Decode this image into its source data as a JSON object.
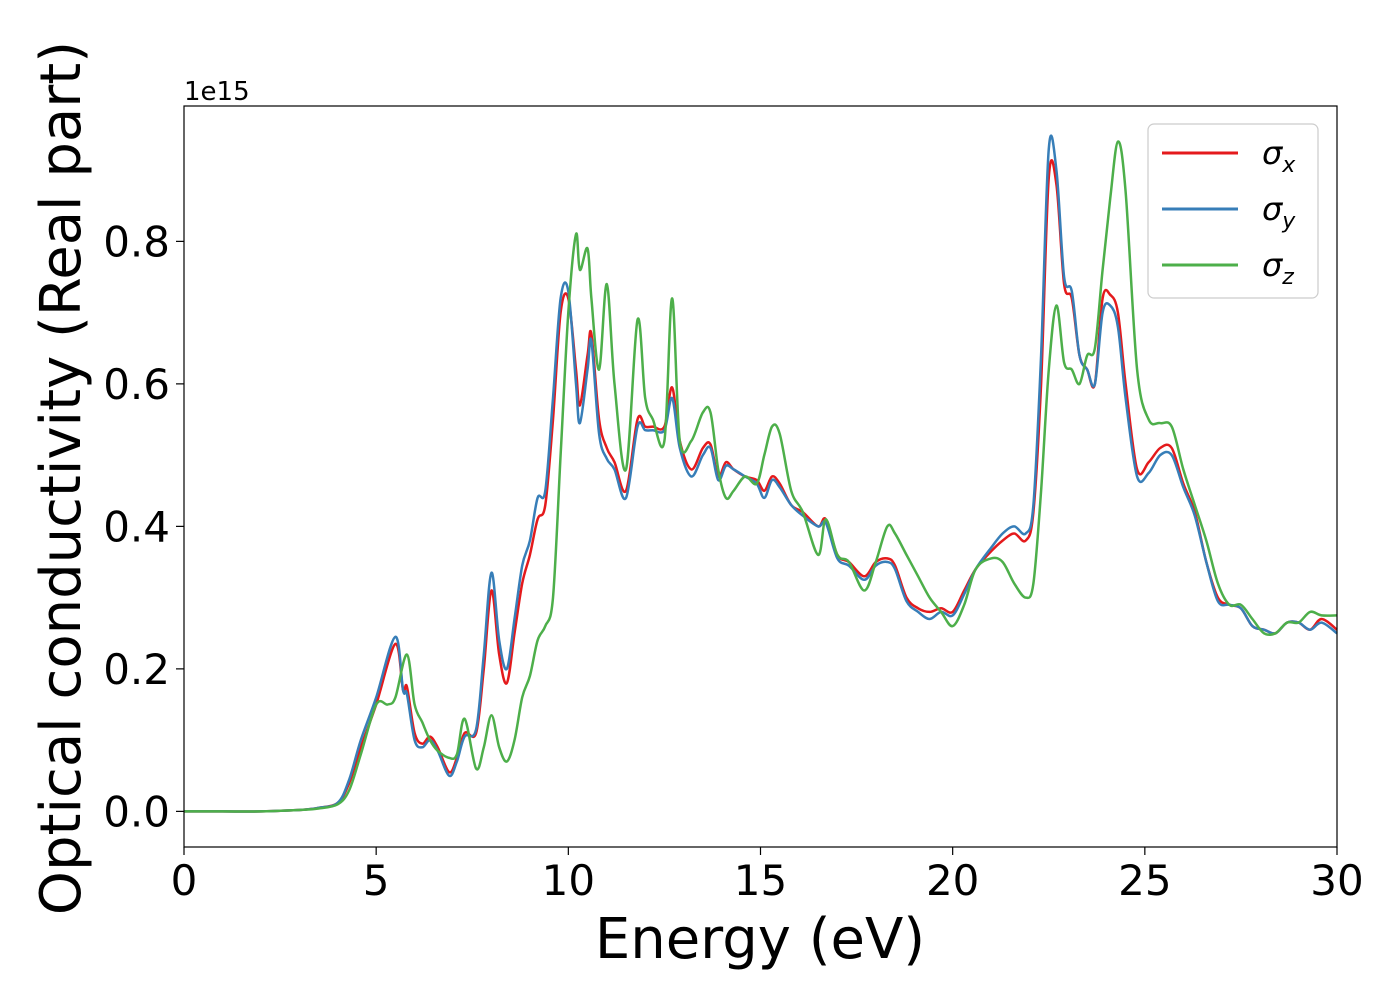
{
  "chart_data": {
    "type": "line",
    "xlabel": "Energy (eV)",
    "ylabel": "Optical conductivity (Real part)",
    "y_offset_label": "1e15",
    "xlim": [
      0,
      30
    ],
    "ylim": [
      -0.05,
      0.99
    ],
    "xticks": [
      0,
      5,
      10,
      15,
      20,
      25,
      30
    ],
    "xtick_labels": [
      "0",
      "5",
      "10",
      "15",
      "20",
      "25",
      "30"
    ],
    "yticks": [
      0.0,
      0.2,
      0.4,
      0.6,
      0.8
    ],
    "ytick_labels": [
      "0.0",
      "0.2",
      "0.4",
      "0.6",
      "0.8"
    ],
    "grid": false,
    "legend_position": "top-right",
    "series": [
      {
        "name": "σx",
        "symbol": "σ",
        "subscript": "x",
        "color": "#e41a1c",
        "x": [
          0,
          1,
          2,
          3,
          3.5,
          4,
          4.3,
          4.6,
          5,
          5.5,
          5.7,
          5.8,
          6,
          6.2,
          6.4,
          6.6,
          6.9,
          7.1,
          7.3,
          7.6,
          7.8,
          8,
          8.2,
          8.4,
          8.6,
          8.8,
          9,
          9.2,
          9.4,
          9.6,
          9.8,
          10,
          10.2,
          10.3,
          10.5,
          10.6,
          10.8,
          11,
          11.2,
          11.5,
          11.8,
          12,
          12.2,
          12.5,
          12.7,
          12.9,
          13.2,
          13.5,
          13.7,
          13.9,
          14.1,
          14.3,
          14.6,
          14.9,
          15.1,
          15.3,
          15.5,
          15.8,
          16.1,
          16.5,
          16.7,
          17,
          17.3,
          17.7,
          18,
          18.3,
          18.5,
          18.8,
          19.1,
          19.4,
          19.7,
          20,
          20.3,
          20.6,
          21,
          21.3,
          21.6,
          21.9,
          22.1,
          22.3,
          22.5,
          22.7,
          22.9,
          23.1,
          23.3,
          23.5,
          23.7,
          23.9,
          24.1,
          24.3,
          24.5,
          24.8,
          25.1,
          25.4,
          25.7,
          26,
          26.3,
          26.6,
          26.9,
          27.2,
          27.5,
          27.8,
          28.1,
          28.4,
          28.7,
          29,
          29.3,
          29.6,
          30
        ],
        "y": [
          0,
          0,
          0,
          0.002,
          0.005,
          0.012,
          0.04,
          0.09,
          0.15,
          0.235,
          0.17,
          0.175,
          0.11,
          0.095,
          0.105,
          0.09,
          0.055,
          0.075,
          0.11,
          0.11,
          0.2,
          0.31,
          0.22,
          0.18,
          0.25,
          0.32,
          0.36,
          0.41,
          0.43,
          0.55,
          0.7,
          0.72,
          0.62,
          0.57,
          0.64,
          0.67,
          0.55,
          0.51,
          0.49,
          0.45,
          0.55,
          0.54,
          0.54,
          0.54,
          0.595,
          0.52,
          0.48,
          0.51,
          0.515,
          0.47,
          0.49,
          0.48,
          0.47,
          0.465,
          0.45,
          0.47,
          0.46,
          0.43,
          0.42,
          0.4,
          0.41,
          0.36,
          0.35,
          0.33,
          0.35,
          0.355,
          0.345,
          0.3,
          0.285,
          0.28,
          0.285,
          0.28,
          0.31,
          0.34,
          0.365,
          0.38,
          0.39,
          0.38,
          0.42,
          0.6,
          0.89,
          0.88,
          0.74,
          0.72,
          0.64,
          0.62,
          0.6,
          0.72,
          0.725,
          0.7,
          0.6,
          0.48,
          0.49,
          0.51,
          0.51,
          0.46,
          0.42,
          0.35,
          0.3,
          0.29,
          0.285,
          0.26,
          0.255,
          0.25,
          0.265,
          0.265,
          0.255,
          0.27,
          0.255
        ]
      },
      {
        "name": "σy",
        "symbol": "σ",
        "subscript": "y",
        "color": "#377eb8",
        "x": [
          0,
          1,
          2,
          3,
          3.5,
          4,
          4.3,
          4.6,
          5,
          5.5,
          5.7,
          5.8,
          6,
          6.2,
          6.4,
          6.6,
          6.9,
          7.1,
          7.3,
          7.6,
          7.8,
          8,
          8.2,
          8.4,
          8.6,
          8.8,
          9,
          9.2,
          9.4,
          9.6,
          9.8,
          10,
          10.2,
          10.3,
          10.5,
          10.6,
          10.8,
          11,
          11.2,
          11.5,
          11.8,
          12,
          12.2,
          12.5,
          12.7,
          12.9,
          13.2,
          13.5,
          13.7,
          13.9,
          14.1,
          14.3,
          14.6,
          14.9,
          15.1,
          15.3,
          15.5,
          15.8,
          16.1,
          16.5,
          16.7,
          17,
          17.3,
          17.7,
          18,
          18.3,
          18.5,
          18.8,
          19.1,
          19.4,
          19.7,
          20,
          20.3,
          20.6,
          21,
          21.3,
          21.6,
          21.9,
          22.1,
          22.3,
          22.5,
          22.7,
          22.9,
          23.1,
          23.3,
          23.5,
          23.7,
          23.9,
          24.1,
          24.3,
          24.5,
          24.8,
          25.1,
          25.4,
          25.7,
          26,
          26.3,
          26.6,
          26.9,
          27.2,
          27.5,
          27.8,
          28.1,
          28.4,
          28.7,
          29,
          29.3,
          29.6,
          30
        ],
        "y": [
          0,
          0,
          0,
          0.002,
          0.005,
          0.012,
          0.045,
          0.1,
          0.16,
          0.245,
          0.17,
          0.165,
          0.1,
          0.09,
          0.1,
          0.085,
          0.05,
          0.07,
          0.105,
          0.115,
          0.22,
          0.335,
          0.24,
          0.2,
          0.27,
          0.345,
          0.38,
          0.44,
          0.45,
          0.58,
          0.72,
          0.73,
          0.6,
          0.545,
          0.62,
          0.66,
          0.53,
          0.495,
          0.48,
          0.44,
          0.54,
          0.535,
          0.535,
          0.535,
          0.58,
          0.51,
          0.47,
          0.5,
          0.51,
          0.465,
          0.485,
          0.48,
          0.47,
          0.46,
          0.44,
          0.465,
          0.455,
          0.43,
          0.415,
          0.4,
          0.405,
          0.355,
          0.345,
          0.325,
          0.345,
          0.35,
          0.34,
          0.295,
          0.28,
          0.27,
          0.28,
          0.275,
          0.305,
          0.34,
          0.37,
          0.39,
          0.4,
          0.39,
          0.43,
          0.64,
          0.93,
          0.9,
          0.75,
          0.73,
          0.64,
          0.62,
          0.6,
          0.7,
          0.71,
          0.68,
          0.58,
          0.47,
          0.475,
          0.5,
          0.5,
          0.455,
          0.415,
          0.35,
          0.295,
          0.29,
          0.285,
          0.26,
          0.255,
          0.25,
          0.265,
          0.265,
          0.255,
          0.265,
          0.25
        ]
      },
      {
        "name": "σz",
        "symbol": "σ",
        "subscript": "z",
        "color": "#4daf4a",
        "x": [
          0,
          1,
          2,
          3,
          3.5,
          4,
          4.3,
          4.6,
          5,
          5.3,
          5.5,
          5.8,
          6,
          6.2,
          6.4,
          6.6,
          6.9,
          7.1,
          7.3,
          7.6,
          7.8,
          8,
          8.2,
          8.4,
          8.6,
          8.8,
          9,
          9.2,
          9.4,
          9.6,
          9.8,
          10,
          10.2,
          10.3,
          10.5,
          10.6,
          10.8,
          11,
          11.2,
          11.5,
          11.8,
          12,
          12.2,
          12.5,
          12.7,
          12.9,
          13.2,
          13.5,
          13.7,
          13.9,
          14.1,
          14.3,
          14.6,
          14.9,
          15.1,
          15.3,
          15.5,
          15.8,
          16.1,
          16.5,
          16.7,
          17,
          17.3,
          17.7,
          18,
          18.3,
          18.5,
          18.8,
          19.1,
          19.4,
          19.7,
          20,
          20.3,
          20.6,
          21,
          21.3,
          21.6,
          21.9,
          22.1,
          22.3,
          22.5,
          22.7,
          22.9,
          23.1,
          23.3,
          23.5,
          23.7,
          23.9,
          24.1,
          24.3,
          24.5,
          24.8,
          25.1,
          25.4,
          25.7,
          26,
          26.3,
          26.6,
          26.9,
          27.2,
          27.5,
          27.8,
          28.1,
          28.4,
          28.7,
          29,
          29.3,
          29.6,
          30
        ],
        "y": [
          0,
          0,
          0,
          0.002,
          0.004,
          0.01,
          0.03,
          0.08,
          0.15,
          0.15,
          0.16,
          0.22,
          0.15,
          0.125,
          0.1,
          0.085,
          0.075,
          0.08,
          0.13,
          0.06,
          0.09,
          0.135,
          0.09,
          0.07,
          0.1,
          0.16,
          0.19,
          0.24,
          0.26,
          0.3,
          0.5,
          0.7,
          0.81,
          0.76,
          0.79,
          0.72,
          0.62,
          0.74,
          0.6,
          0.48,
          0.69,
          0.58,
          0.55,
          0.52,
          0.72,
          0.52,
          0.52,
          0.56,
          0.56,
          0.48,
          0.44,
          0.45,
          0.47,
          0.46,
          0.5,
          0.54,
          0.53,
          0.45,
          0.42,
          0.36,
          0.41,
          0.36,
          0.35,
          0.31,
          0.35,
          0.4,
          0.39,
          0.36,
          0.33,
          0.3,
          0.28,
          0.26,
          0.29,
          0.34,
          0.355,
          0.35,
          0.32,
          0.3,
          0.32,
          0.45,
          0.62,
          0.71,
          0.63,
          0.62,
          0.6,
          0.64,
          0.65,
          0.76,
          0.86,
          0.94,
          0.87,
          0.62,
          0.55,
          0.545,
          0.54,
          0.48,
          0.43,
          0.38,
          0.32,
          0.29,
          0.29,
          0.27,
          0.25,
          0.25,
          0.265,
          0.265,
          0.28,
          0.275,
          0.275
        ]
      }
    ]
  }
}
